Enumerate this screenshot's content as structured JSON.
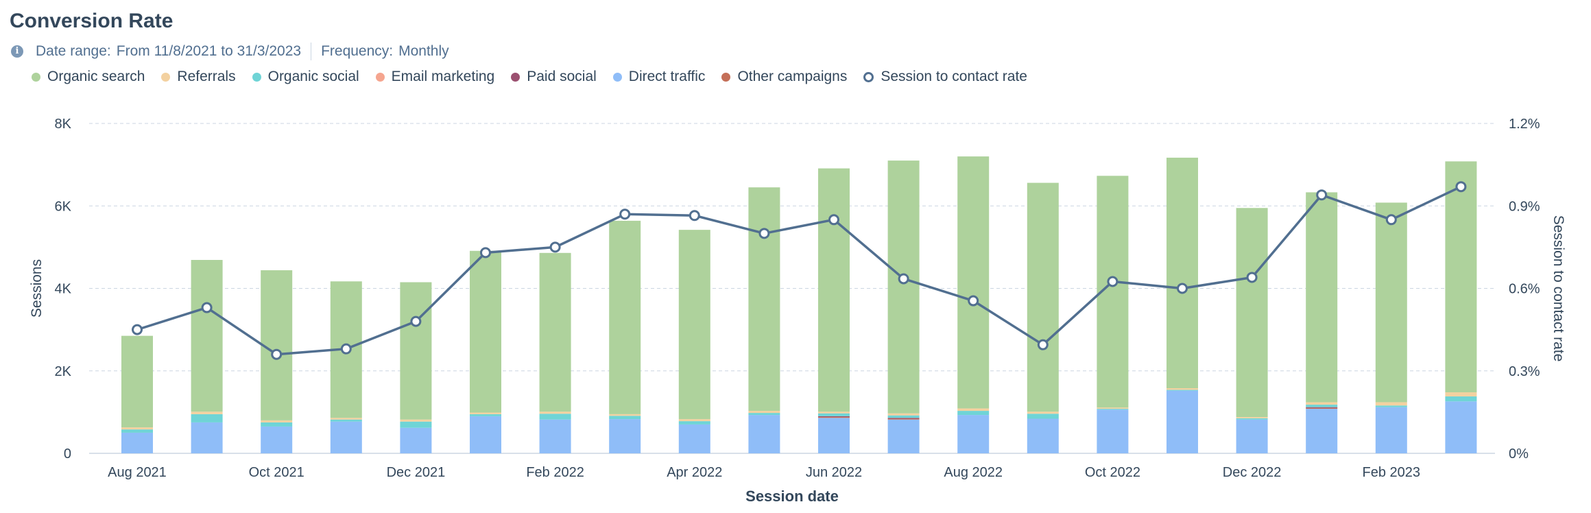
{
  "header": {
    "title": "Conversion Rate",
    "date_range_label": "Date range:",
    "date_range_value": "From 11/8/2021 to 31/3/2023",
    "frequency_label": "Frequency:",
    "frequency_value": "Monthly",
    "info_icon": "info-icon"
  },
  "colors": {
    "organic_search": "#aed29c",
    "referrals": "#f3d1a0",
    "organic_social": "#6fd4d6",
    "email_marketing": "#f5a58f",
    "paid_social": "#9b5070",
    "direct_traffic": "#8fbdf8",
    "other_campaigns": "#c46f58",
    "line": "#516f90",
    "grid": "#cbd6e2",
    "axis_text": "#33475b"
  },
  "chart_data": {
    "type": "bar",
    "stacked": true,
    "title": "Conversion Rate",
    "xlabel": "Session date",
    "ylabel": "Sessions",
    "y2label": "Session to contact rate",
    "ylim": [
      0,
      8000
    ],
    "y2lim": [
      0,
      1.2
    ],
    "yticks": [
      "0",
      "2K",
      "4K",
      "6K",
      "8K"
    ],
    "y2ticks": [
      "0%",
      "0.3%",
      "0.6%",
      "0.9%",
      "1.2%"
    ],
    "grid": true,
    "legend_position": "top-left",
    "x_tick_labels": [
      "Aug 2021",
      "",
      "Oct 2021",
      "",
      "Dec 2021",
      "",
      "Feb 2022",
      "",
      "Apr 2022",
      "",
      "Jun 2022",
      "",
      "Aug 2022",
      "",
      "Oct 2022",
      "",
      "Dec 2022",
      "",
      "Feb 2023",
      ""
    ],
    "categories": [
      "Aug 2021",
      "Sep 2021",
      "Oct 2021",
      "Nov 2021",
      "Dec 2021",
      "Jan 2022",
      "Feb 2022",
      "Mar 2022",
      "Apr 2022",
      "May 2022",
      "Jun 2022",
      "Jul 2022",
      "Aug 2022",
      "Sep 2022",
      "Oct 2022",
      "Nov 2022",
      "Dec 2022",
      "Jan 2023",
      "Feb 2023",
      "Mar 2023"
    ],
    "series": [
      {
        "name": "Direct traffic",
        "color_key": "direct_traffic",
        "values": [
          500,
          750,
          650,
          770,
          620,
          900,
          820,
          830,
          700,
          930,
          860,
          820,
          930,
          840,
          1060,
          1520,
          820,
          1080,
          1120,
          1260
        ]
      },
      {
        "name": "Other campaigns",
        "color_key": "other_campaigns",
        "values": [
          0,
          0,
          0,
          0,
          0,
          0,
          0,
          0,
          0,
          0,
          20,
          20,
          0,
          0,
          0,
          0,
          0,
          20,
          0,
          0
        ]
      },
      {
        "name": "Paid social",
        "color_key": "paid_social",
        "values": [
          0,
          0,
          0,
          0,
          0,
          0,
          0,
          0,
          0,
          0,
          20,
          20,
          0,
          0,
          0,
          0,
          0,
          20,
          0,
          0
        ]
      },
      {
        "name": "Email marketing",
        "color_key": "email_marketing",
        "values": [
          0,
          0,
          0,
          0,
          0,
          0,
          0,
          0,
          0,
          0,
          0,
          0,
          0,
          0,
          0,
          0,
          0,
          0,
          0,
          0
        ]
      },
      {
        "name": "Organic social",
        "color_key": "organic_social",
        "values": [
          80,
          200,
          100,
          50,
          150,
          50,
          140,
          80,
          80,
          50,
          70,
          60,
          100,
          120,
          20,
          20,
          30,
          60,
          40,
          120
        ]
      },
      {
        "name": "Referrals",
        "color_key": "referrals",
        "values": [
          50,
          60,
          50,
          40,
          50,
          40,
          50,
          40,
          50,
          50,
          40,
          50,
          60,
          50,
          30,
          40,
          30,
          60,
          80,
          100
        ]
      },
      {
        "name": "Organic search",
        "color_key": "organic_search",
        "values": [
          2220,
          3680,
          3640,
          3310,
          3330,
          3920,
          3850,
          4690,
          4590,
          5420,
          5900,
          6130,
          6110,
          5550,
          5620,
          5590,
          5070,
          5090,
          4840,
          5600
        ]
      }
    ],
    "line": {
      "name": "Session to contact rate",
      "axis": "right",
      "values": [
        0.45,
        0.53,
        0.36,
        0.38,
        0.48,
        0.73,
        0.75,
        0.87,
        0.865,
        0.8,
        0.85,
        0.635,
        0.555,
        0.395,
        0.625,
        0.6,
        0.64,
        0.94,
        0.85,
        0.97
      ]
    }
  }
}
